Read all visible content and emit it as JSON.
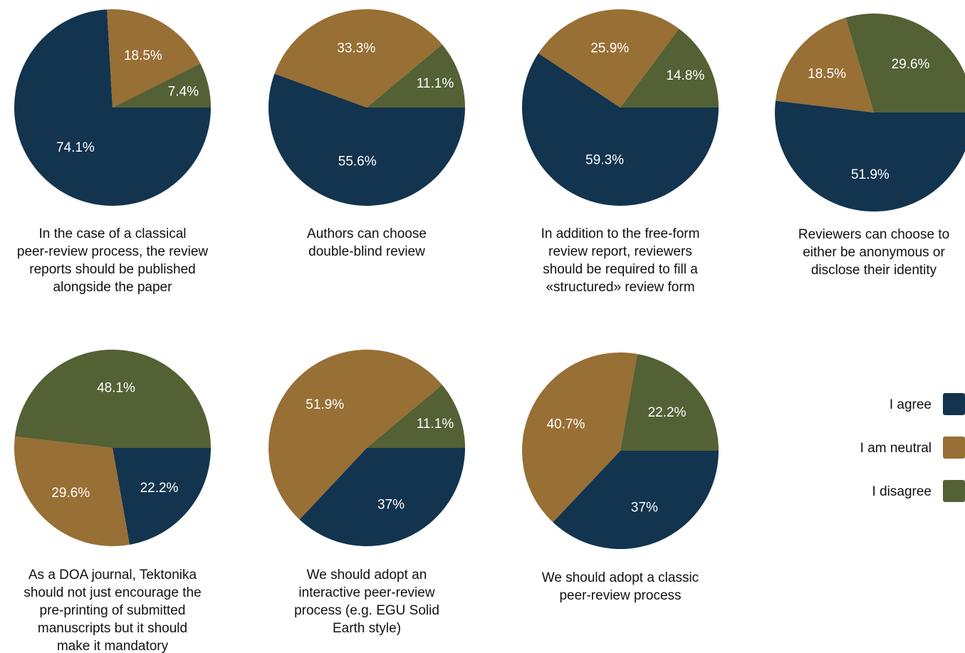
{
  "colors": {
    "agree": "#12344f",
    "neutral": "#986f35",
    "disagree": "#536135"
  },
  "legend": {
    "items": [
      {
        "label": "I agree",
        "color_key": "agree"
      },
      {
        "label": "I am neutral",
        "color_key": "neutral"
      },
      {
        "label": "I disagree",
        "color_key": "disagree"
      }
    ]
  },
  "chart_data": [
    {
      "type": "pie",
      "caption": [
        "In the case of a classical",
        "peer-review process, the review",
        "reports should be published",
        "alongside the paper"
      ],
      "slices": [
        {
          "key": "agree",
          "value": 74.1,
          "label": "74.1%"
        },
        {
          "key": "neutral",
          "value": 18.5,
          "label": "18.5%"
        },
        {
          "key": "disagree",
          "value": 7.4,
          "label": "7.4%"
        }
      ]
    },
    {
      "type": "pie",
      "caption": [
        "Authors can choose",
        "double-blind review"
      ],
      "slices": [
        {
          "key": "agree",
          "value": 55.6,
          "label": "55.6%"
        },
        {
          "key": "neutral",
          "value": 33.3,
          "label": "33.3%"
        },
        {
          "key": "disagree",
          "value": 11.1,
          "label": "11.1%"
        }
      ]
    },
    {
      "type": "pie",
      "caption": [
        "In addition to the free-form",
        "review report, reviewers",
        "should be required to fill a",
        "«structured» review form"
      ],
      "slices": [
        {
          "key": "agree",
          "value": 59.3,
          "label": "59.3%"
        },
        {
          "key": "neutral",
          "value": 25.9,
          "label": "25.9%"
        },
        {
          "key": "disagree",
          "value": 14.8,
          "label": "14.8%"
        }
      ]
    },
    {
      "type": "pie",
      "caption": [
        "Reviewers can choose to",
        "either be anonymous or",
        "disclose their identity"
      ],
      "slices": [
        {
          "key": "agree",
          "value": 51.9,
          "label": "51.9%"
        },
        {
          "key": "neutral",
          "value": 18.5,
          "label": "18.5%"
        },
        {
          "key": "disagree",
          "value": 29.6,
          "label": "29.6%"
        }
      ]
    },
    {
      "type": "pie",
      "caption": [
        "As a DOA journal, Tektonika",
        "should not just encourage the",
        "pre-printing of submitted",
        "manuscripts but it should",
        "make it mandatory"
      ],
      "slices": [
        {
          "key": "agree",
          "value": 22.2,
          "label": "22.2%"
        },
        {
          "key": "neutral",
          "value": 29.6,
          "label": "29.6%"
        },
        {
          "key": "disagree",
          "value": 48.1,
          "label": "48.1%"
        }
      ]
    },
    {
      "type": "pie",
      "caption": [
        "We should adopt an",
        "interactive peer-review",
        "process (e.g. EGU Solid",
        "Earth style)"
      ],
      "slices": [
        {
          "key": "agree",
          "value": 37,
          "label": "37%"
        },
        {
          "key": "neutral",
          "value": 51.9,
          "label": "51.9%"
        },
        {
          "key": "disagree",
          "value": 11.1,
          "label": "11.1%"
        }
      ]
    },
    {
      "type": "pie",
      "caption": [
        "We should adopt a classic",
        "peer-review process"
      ],
      "slices": [
        {
          "key": "agree",
          "value": 37,
          "label": "37%"
        },
        {
          "key": "neutral",
          "value": 40.7,
          "label": "40.7%"
        },
        {
          "key": "disagree",
          "value": 22.2,
          "label": "22.2%"
        }
      ]
    }
  ]
}
